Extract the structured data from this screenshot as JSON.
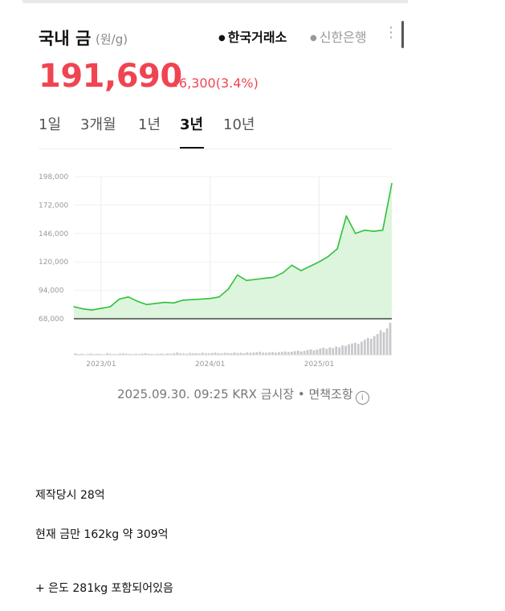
{
  "header": {
    "title": "국내 금",
    "unit": "(원/g)",
    "sources": [
      "한국거래소",
      "신한은행"
    ],
    "more_icon": "kebab-menu-icon"
  },
  "price": {
    "value": "191,690",
    "change": "6,300",
    "change_pct": "(3.4%)",
    "direction": "up",
    "color": "#f04452"
  },
  "tabs": [
    {
      "label": "1일",
      "active": false
    },
    {
      "label": "3개월",
      "active": false
    },
    {
      "label": "1년",
      "active": false
    },
    {
      "label": "3년",
      "active": true
    },
    {
      "label": "10년",
      "active": false
    }
  ],
  "chart_data": {
    "type": "area",
    "line_color": "#2fc13c",
    "fill_color": "#dcf5dc",
    "ylim": [
      68000,
      198000
    ],
    "y_ticks": [
      "198,000",
      "172,000",
      "146,000",
      "120,000",
      "94,000",
      "68,000"
    ],
    "x_ticks": [
      "2023/01",
      "2024/01",
      "2025/01"
    ],
    "grid": true,
    "series": [
      {
        "x": [
          "2022/10",
          "2022/11",
          "2022/12",
          "2023/01",
          "2023/02",
          "2023/03",
          "2023/04",
          "2023/05",
          "2023/06",
          "2023/07",
          "2023/08",
          "2023/09",
          "2023/10",
          "2023/11",
          "2023/12",
          "2024/01",
          "2024/02",
          "2024/03",
          "2024/04",
          "2024/05",
          "2024/06",
          "2024/07",
          "2024/08",
          "2024/09",
          "2024/10",
          "2024/11",
          "2024/12",
          "2025/01",
          "2025/02",
          "2025/03",
          "2025/04",
          "2025/05",
          "2025/06",
          "2025/07",
          "2025/08",
          "2025/09"
        ],
        "values": [
          79000,
          77000,
          76000,
          77500,
          79000,
          86000,
          88000,
          84000,
          81000,
          82000,
          83000,
          82500,
          85000,
          85500,
          86000,
          86500,
          88000,
          95000,
          108000,
          103000,
          104000,
          105000,
          106000,
          110000,
          117000,
          112000,
          116000,
          120000,
          125000,
          132000,
          162000,
          146000,
          149000,
          148000,
          149000,
          191690
        ]
      }
    ],
    "volume": [
      8,
      4,
      6,
      3,
      5,
      7,
      4,
      6,
      5,
      3,
      9,
      6,
      5,
      4,
      7,
      8,
      6,
      5,
      4,
      6,
      5,
      7,
      9,
      6,
      5,
      4,
      6,
      7,
      5,
      8,
      6,
      9,
      12,
      8,
      7,
      6,
      10,
      8,
      9,
      7,
      11,
      9,
      8,
      10,
      12,
      9,
      8,
      11,
      10,
      9,
      12,
      10,
      11,
      9,
      13,
      11,
      12,
      14,
      16,
      12,
      11,
      13,
      15,
      12,
      14,
      16,
      18,
      15,
      17,
      20,
      22,
      18,
      21,
      26,
      30,
      24,
      28,
      34,
      38,
      32,
      40,
      36,
      44,
      40,
      50,
      48,
      56,
      60,
      64,
      58,
      70,
      80,
      90,
      85,
      100,
      110,
      130,
      120,
      140,
      170
    ],
    "volume_color": "#c8c8cc"
  },
  "footer": {
    "timestamp": "2025.09.30. 09:25 KRX 금시장 • 면책조항",
    "info_icon": "info-icon"
  },
  "notes": [
    "제작당시 28억",
    "현재 금만 162kg 약 309억",
    "+ 은도 281kg 포함되어있음"
  ]
}
